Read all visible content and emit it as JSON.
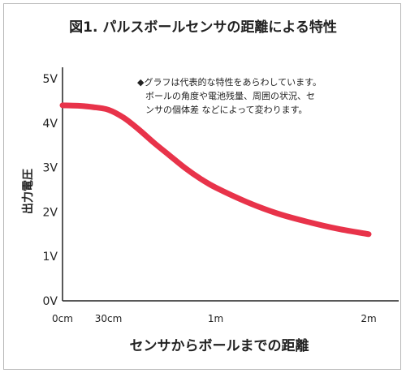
{
  "colors": {
    "curve": "#e8334a",
    "axis": "#222222"
  },
  "chart_data": {
    "type": "line",
    "title": "図1. パルスボールセンサの距離による特性",
    "xlabel": "センサからボールまでの距離",
    "ylabel": "出力電圧",
    "x_ticks": [
      {
        "value": 0,
        "label": "0cm"
      },
      {
        "value": 0.3,
        "label": "30cm"
      },
      {
        "value": 1,
        "label": "1m"
      },
      {
        "value": 2,
        "label": "2m"
      }
    ],
    "y_ticks": [
      {
        "value": 0,
        "label": "0V"
      },
      {
        "value": 1,
        "label": "1V"
      },
      {
        "value": 2,
        "label": "2V"
      },
      {
        "value": 3,
        "label": "3V"
      },
      {
        "value": 4,
        "label": "4V"
      },
      {
        "value": 5,
        "label": "5V"
      }
    ],
    "xlim": [
      0,
      2
    ],
    "ylim": [
      0,
      5
    ],
    "grid": false,
    "series": [
      {
        "x": [
          0,
          0.1,
          0.2,
          0.3,
          0.4,
          0.5,
          0.6,
          0.7,
          0.8,
          0.9,
          1.0,
          1.2,
          1.4,
          1.6,
          1.8,
          2.0
        ],
        "y": [
          4.4,
          4.39,
          4.36,
          4.3,
          4.12,
          3.85,
          3.55,
          3.27,
          2.99,
          2.75,
          2.55,
          2.23,
          1.97,
          1.78,
          1.62,
          1.5
        ]
      }
    ],
    "annotation": [
      "◆グラフは代表的な特性をあらわしています。",
      "ボールの角度や電池残量、周囲の状況、セ",
      "ンサの個体差 などによって変わります。"
    ]
  }
}
